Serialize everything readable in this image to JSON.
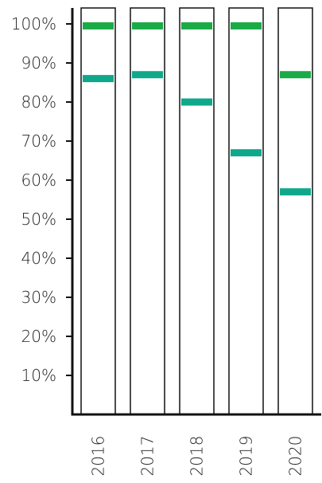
{
  "chart_data": {
    "type": "bar",
    "categories": [
      "2016",
      "2017",
      "2018",
      "2019",
      "2020"
    ],
    "y_ticks": [
      "10%",
      "20%",
      "30%",
      "40%",
      "50%",
      "60%",
      "70%",
      "80%",
      "90%",
      "100%"
    ],
    "series": [
      {
        "values": [
          99.5,
          99.5,
          99.5,
          99.5,
          87
        ],
        "color": "#1aab46"
      },
      {
        "values": [
          86,
          87,
          80,
          67,
          57
        ],
        "color": "#0fa88a"
      }
    ],
    "ylim": [
      0,
      100
    ],
    "grid": false,
    "legend": "none"
  }
}
